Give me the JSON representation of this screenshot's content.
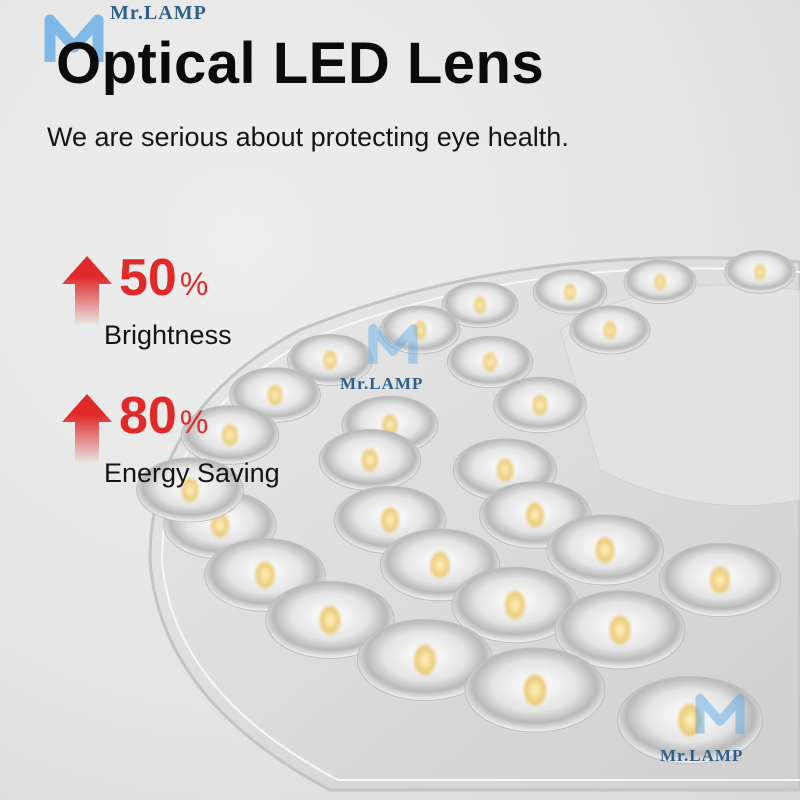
{
  "headline": "Optical LED Lens",
  "subtitle": "We are serious about protecting eye health.",
  "stats": [
    {
      "value": "50",
      "unit": "%",
      "label": "Brightness",
      "icon": "arrow-up-icon"
    },
    {
      "value": "80",
      "unit": "%",
      "label": "Energy Saving",
      "icon": "arrow-up-icon"
    }
  ],
  "watermark": "Mr.LAMP",
  "colors": {
    "accent": "#e02a2a",
    "logo": "#5aa8e6"
  }
}
